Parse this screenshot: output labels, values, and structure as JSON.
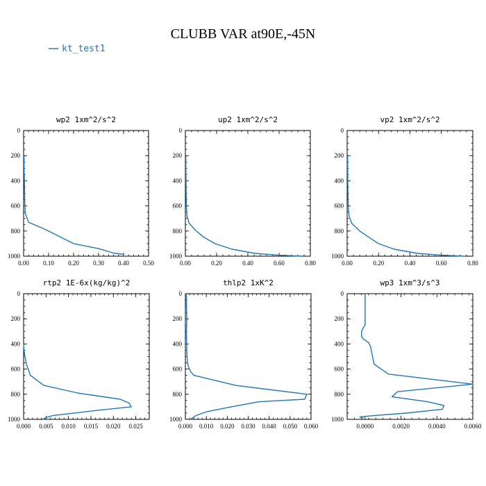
{
  "chart": {
    "title": "CLUBB VAR at90E,-45N",
    "legend": {
      "label": "kt_test1",
      "color": "#1f77b4",
      "placement": "top-left"
    },
    "line_color": "#1f77b4"
  },
  "chart_data": [
    {
      "type": "line",
      "title": "wp2  1xm^2/s^2",
      "xlim": [
        0,
        0.5
      ],
      "ylim": [
        0,
        1000
      ],
      "y_inverted": true,
      "xticks": [
        "0.00",
        "0.10",
        "0.20",
        "0.30",
        "0.40",
        "0.50"
      ],
      "xtick_values": [
        0,
        0.1,
        0.2,
        0.3,
        0.4,
        0.5
      ],
      "yticks": [
        "0",
        "200",
        "400",
        "600",
        "800",
        "1000"
      ],
      "ytick_values": [
        0,
        200,
        400,
        600,
        800,
        1000
      ],
      "series": [
        {
          "name": "kt_test1",
          "x": [
            0.002,
            0.002,
            0.003,
            0.004,
            0.005,
            0.007,
            0.02,
            0.09,
            0.15,
            0.2,
            0.3,
            0.36,
            0.4,
            0.398
          ],
          "y": [
            200,
            300,
            400,
            500,
            600,
            660,
            730,
            790,
            850,
            900,
            940,
            975,
            985,
            1000
          ]
        }
      ]
    },
    {
      "type": "line",
      "title": "up2  1xm^2/s^2",
      "xlim": [
        0,
        0.8
      ],
      "ylim": [
        0,
        1000
      ],
      "y_inverted": true,
      "xticks": [
        "0.00",
        "0.20",
        "0.40",
        "0.60",
        "0.80"
      ],
      "xtick_values": [
        0,
        0.2,
        0.4,
        0.6,
        0.8
      ],
      "yticks": [
        "0",
        "200",
        "400",
        "600",
        "800",
        "1000"
      ],
      "ytick_values": [
        0,
        200,
        400,
        600,
        800,
        1000
      ],
      "series": [
        {
          "name": "kt_test1",
          "x": [
            0.003,
            0.003,
            0.004,
            0.005,
            0.006,
            0.01,
            0.025,
            0.07,
            0.12,
            0.19,
            0.3,
            0.45,
            0.6,
            0.75
          ],
          "y": [
            200,
            300,
            400,
            500,
            600,
            680,
            740,
            800,
            850,
            900,
            945,
            978,
            992,
            1000
          ]
        }
      ]
    },
    {
      "type": "line",
      "title": "vp2  1xm^2/s^2",
      "xlim": [
        0,
        0.8
      ],
      "ylim": [
        0,
        1000
      ],
      "y_inverted": true,
      "xticks": [
        "0.00",
        "0.20",
        "0.40",
        "0.60",
        "0.80"
      ],
      "xtick_values": [
        0,
        0.2,
        0.4,
        0.6,
        0.8
      ],
      "yticks": [
        "0",
        "200",
        "400",
        "600",
        "800",
        "1000"
      ],
      "ytick_values": [
        0,
        200,
        400,
        600,
        800,
        1000
      ],
      "series": [
        {
          "name": "kt_test1",
          "x": [
            0.003,
            0.003,
            0.004,
            0.005,
            0.007,
            0.012,
            0.03,
            0.08,
            0.14,
            0.2,
            0.3,
            0.45,
            0.6,
            0.75
          ],
          "y": [
            200,
            300,
            400,
            500,
            600,
            680,
            740,
            800,
            850,
            900,
            945,
            978,
            992,
            1000
          ]
        }
      ]
    },
    {
      "type": "line",
      "title": "rtp2  1E-6x(kg/kg)^2",
      "xlim": [
        0,
        0.028
      ],
      "ylim": [
        0,
        1000
      ],
      "y_inverted": true,
      "xticks": [
        "0.000",
        "0.005",
        "0.010",
        "0.015",
        "0.020",
        "0.025"
      ],
      "xtick_values": [
        0,
        0.005,
        0.01,
        0.015,
        0.02,
        0.025
      ],
      "yticks": [
        "0",
        "200",
        "400",
        "600",
        "800",
        "1000"
      ],
      "ytick_values": [
        0,
        200,
        400,
        600,
        800,
        1000
      ],
      "series": [
        {
          "name": "kt_test1",
          "x": [
            0.0,
            0.0001,
            0.0003,
            0.0006,
            0.001,
            0.0015,
            0.0045,
            0.012,
            0.0215,
            0.0235,
            0.024,
            0.016,
            0.0065,
            0.005,
            0.0043
          ],
          "y": [
            400,
            450,
            500,
            560,
            600,
            650,
            730,
            790,
            840,
            870,
            900,
            930,
            970,
            985,
            1000
          ]
        }
      ]
    },
    {
      "type": "line",
      "title": "thlp2  1xK^2",
      "xlim": [
        0,
        0.06
      ],
      "ylim": [
        0,
        1000
      ],
      "y_inverted": true,
      "xticks": [
        "0.000",
        "0.010",
        "0.020",
        "0.030",
        "0.040",
        "0.050",
        "0.060"
      ],
      "xtick_values": [
        0,
        0.01,
        0.02,
        0.03,
        0.04,
        0.05,
        0.06
      ],
      "yticks": [
        "0",
        "200",
        "400",
        "600",
        "800",
        "1000"
      ],
      "ytick_values": [
        0,
        200,
        400,
        600,
        800,
        1000
      ],
      "series": [
        {
          "name": "kt_test1",
          "x": [
            0.0005,
            0.0005,
            0.0007,
            0.0005,
            0.0006,
            0.0008,
            0.001,
            0.0015,
            0.0025,
            0.004,
            0.024,
            0.058,
            0.057,
            0.035,
            0.022,
            0.01,
            0.005,
            0.0025
          ],
          "y": [
            0,
            100,
            200,
            300,
            400,
            500,
            550,
            580,
            620,
            650,
            730,
            800,
            840,
            860,
            900,
            940,
            970,
            1000
          ]
        }
      ]
    },
    {
      "type": "line",
      "title": "wp3  1xm^3/s^3",
      "xlim": [
        -0.001,
        0.006
      ],
      "ylim": [
        0,
        1000
      ],
      "y_inverted": true,
      "xticks": [
        "0.0000",
        "0.0020",
        "0.0040",
        "0.0060"
      ],
      "xtick_values": [
        0,
        0.002,
        0.004,
        0.006
      ],
      "yticks": [
        "0",
        "200",
        "400",
        "600",
        "800",
        "1000"
      ],
      "ytick_values": [
        0,
        200,
        400,
        600,
        800,
        1000
      ],
      "series": [
        {
          "name": "kt_test1",
          "x": [
            0.0,
            0.0,
            0.0,
            0.0,
            -0.0001,
            -0.0002,
            -0.0002,
            -0.0001,
            0.0002,
            0.0003,
            0.0005,
            0.0013,
            0.006,
            0.0018,
            0.0015,
            0.0035,
            0.0044,
            0.0043,
            0.0023,
            0.0005,
            -0.0003,
            -0.0001
          ],
          "y": [
            0,
            100,
            200,
            250,
            270,
            300,
            340,
            360,
            390,
            420,
            560,
            640,
            720,
            780,
            820,
            860,
            890,
            920,
            950,
            970,
            980,
            990
          ]
        }
      ]
    }
  ]
}
